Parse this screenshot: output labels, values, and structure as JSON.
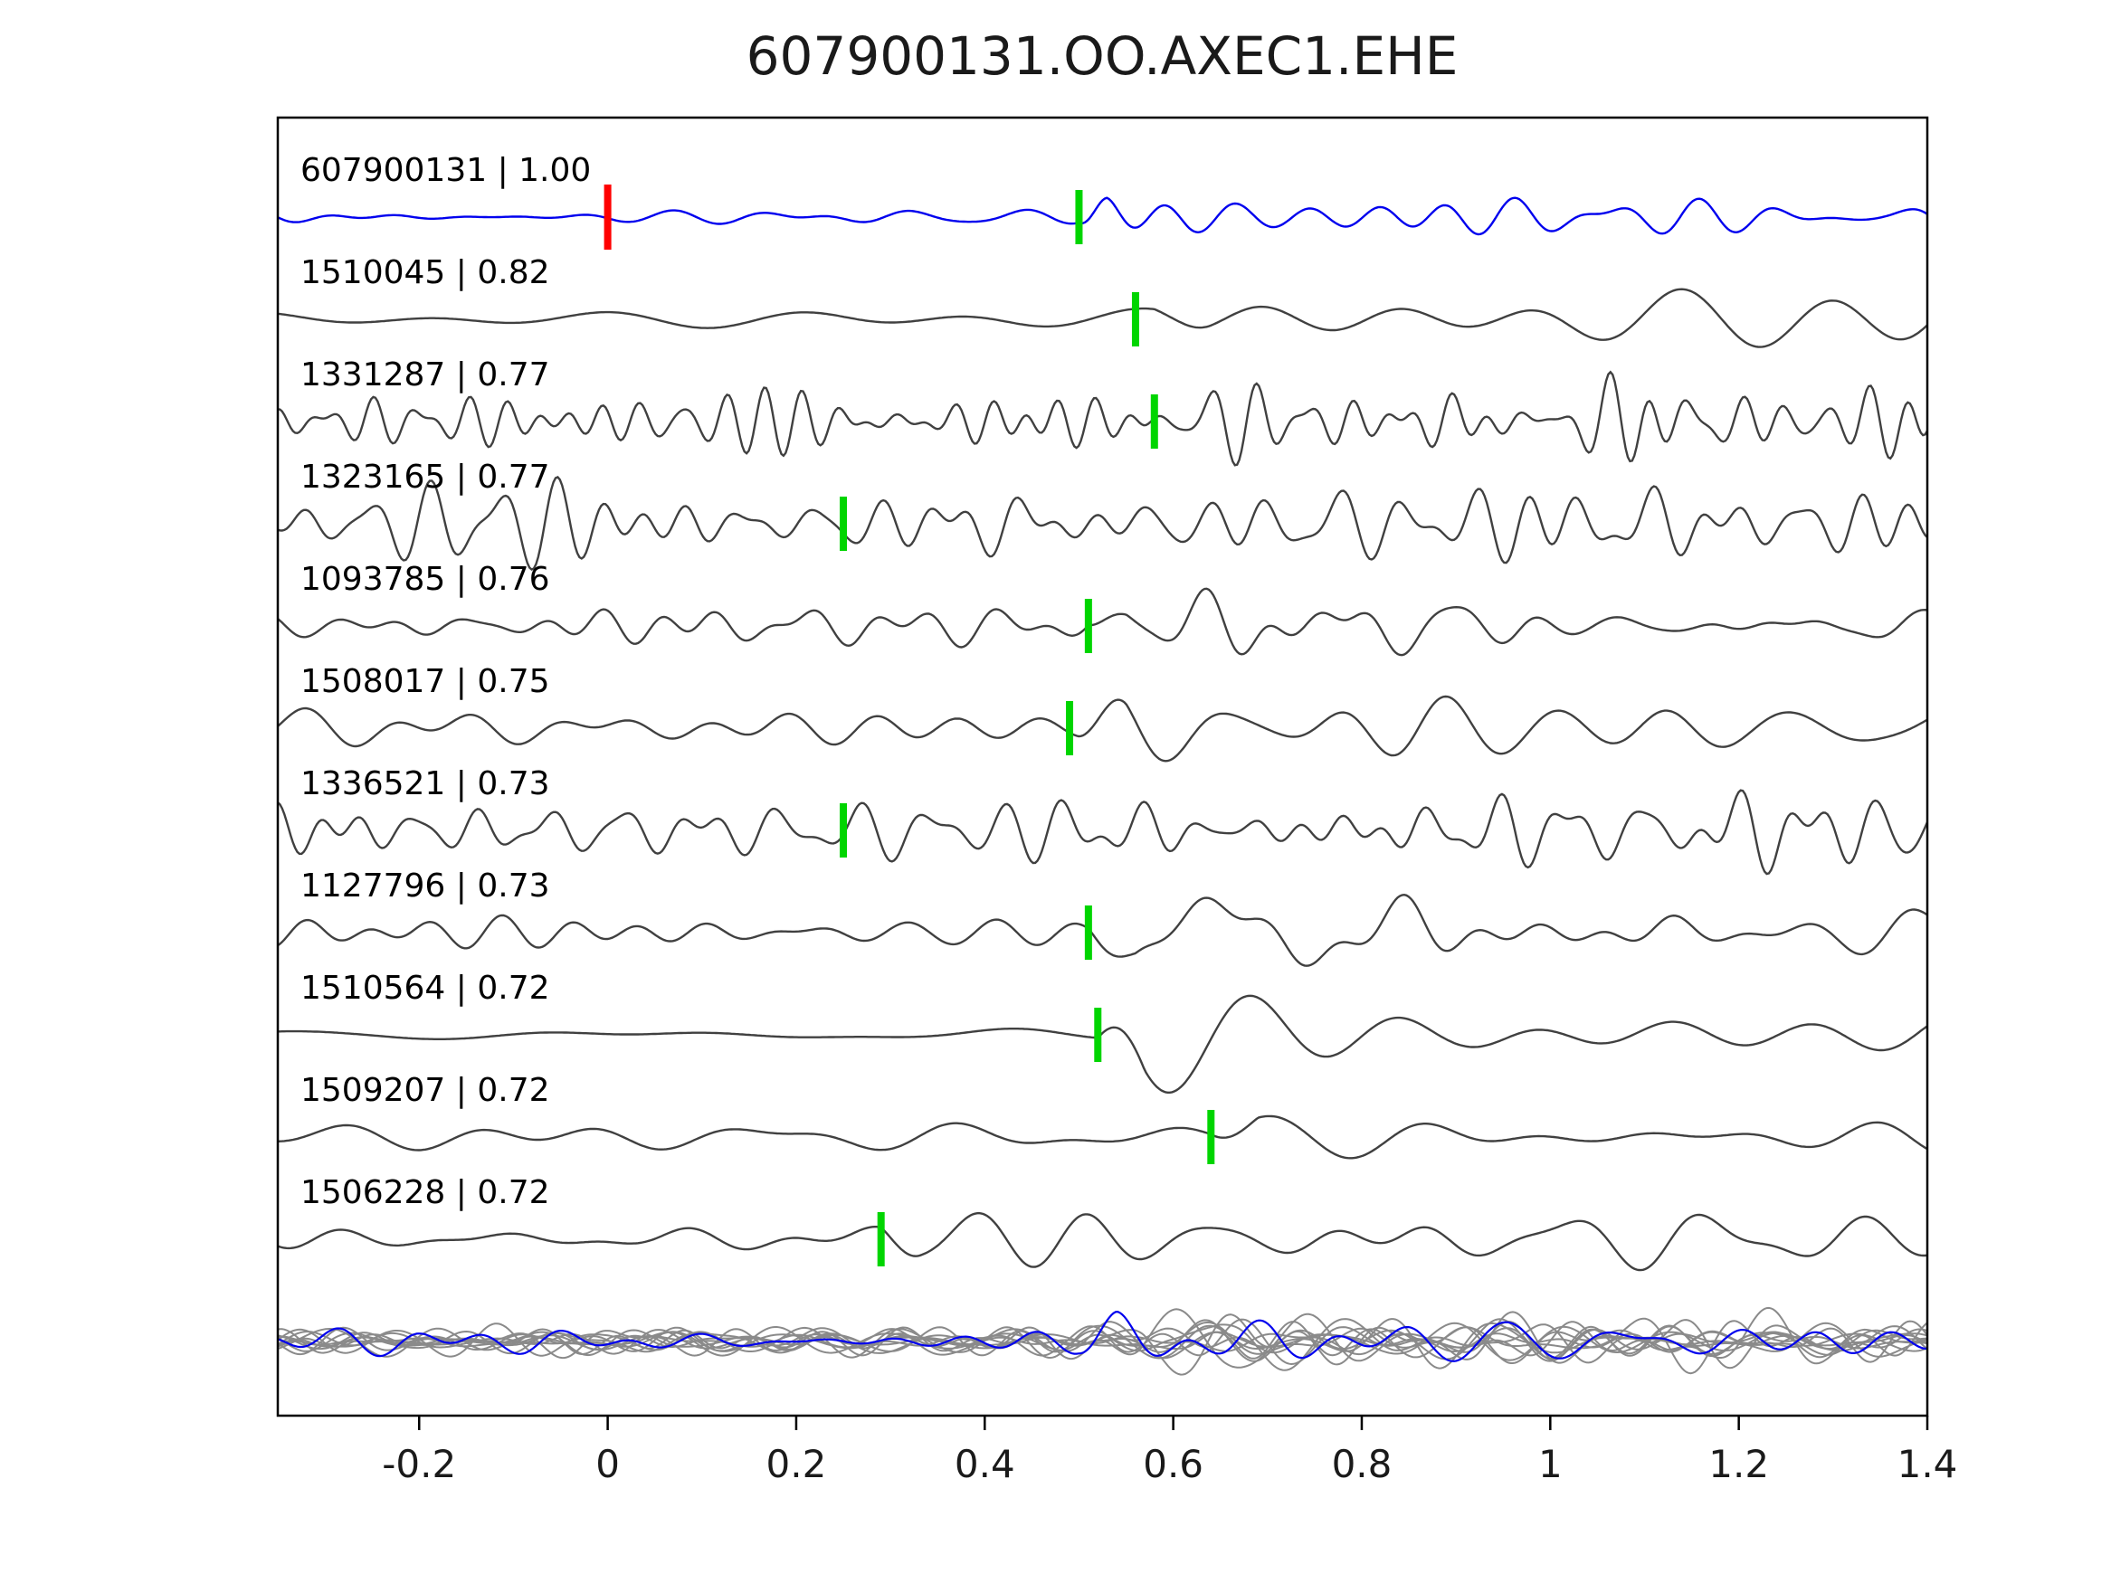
{
  "figure": {
    "title": "607900131.OO.AXEC1.EHE"
  },
  "chart_data": {
    "type": "line",
    "title": "607900131.OO.AXEC1.EHE",
    "description": "Stacked seismic waveform cross-correlation plot: blue template event on top with red pick at t=0, matched detections below each labelled 'id | correlation' with green pick marks, and all traces overlaid at the bottom.",
    "xlim": [
      -0.35,
      1.4
    ],
    "xticks": [
      -0.2,
      0,
      0.2,
      0.4,
      0.6,
      0.8,
      1,
      1.2,
      1.4
    ],
    "xtick_labels": [
      "-0.2",
      "0",
      "0.2",
      "0.4",
      "0.6",
      "0.8",
      "1",
      "1.2",
      "1.4"
    ],
    "grid": false,
    "legend": "none",
    "colors": {
      "template": "#0000ee",
      "trace": "#404040",
      "overlay": "#8a8a8a",
      "pick": "#00d500",
      "template_pick": "#ff0000",
      "axis": "#000000"
    },
    "traces": [
      {
        "id": "607900131",
        "correlation": "1.00",
        "label": "607900131 | 1.00",
        "is_template": true,
        "color": "#0000ee",
        "picks": [
          {
            "time": 0.0,
            "color": "#ff0000"
          },
          {
            "time": 0.5,
            "color": "#00d500"
          }
        ],
        "render": {
          "seed": 101,
          "base_amp": 7,
          "base_f": [
            7,
            18
          ],
          "burst_t": 0.5,
          "burst_amp": 40,
          "burst_f": [
            9,
            16
          ],
          "rise": 0.03,
          "decay": 0.3,
          "tail": 0.4
        }
      },
      {
        "id": "1510045",
        "correlation": "0.82",
        "label": "1510045 | 0.82",
        "is_template": false,
        "color": "#404040",
        "picks": [
          {
            "time": 0.56,
            "color": "#00d500"
          }
        ],
        "render": {
          "seed": 202,
          "base_amp": 10,
          "base_f": [
            3,
            7
          ],
          "burst_t": 0.58,
          "burst_amp": 55,
          "burst_f": [
            4,
            7
          ],
          "rise": 0.06,
          "decay": 0.45,
          "tail": 0.45
        }
      },
      {
        "id": "1331287",
        "correlation": "0.77",
        "label": "1331287 | 0.77",
        "is_template": false,
        "color": "#404040",
        "picks": [
          {
            "time": 0.58,
            "color": "#00d500"
          }
        ],
        "render": {
          "seed": 303,
          "base_amp": 26,
          "base_f": [
            14,
            30
          ],
          "burst_t": 0.58,
          "burst_amp": 26,
          "burst_f": [
            10,
            20
          ],
          "rise": 0.04,
          "decay": 0.35,
          "tail": 0.5
        }
      },
      {
        "id": "1323165",
        "correlation": "0.77",
        "label": "1323165 | 0.77",
        "is_template": false,
        "color": "#404040",
        "picks": [
          {
            "time": 0.25,
            "color": "#00d500"
          }
        ],
        "render": {
          "seed": 404,
          "base_amp": 30,
          "base_f": [
            10,
            26
          ],
          "burst_t": 0.26,
          "burst_amp": 26,
          "burst_f": [
            8,
            18
          ],
          "rise": 0.04,
          "decay": 0.5,
          "tail": 0.5
        }
      },
      {
        "id": "1093785",
        "correlation": "0.76",
        "label": "1093785 | 0.76",
        "is_template": false,
        "color": "#404040",
        "picks": [
          {
            "time": 0.51,
            "color": "#00d500"
          }
        ],
        "render": {
          "seed": 505,
          "base_amp": 14,
          "base_f": [
            8,
            20
          ],
          "burst_t": 0.51,
          "burst_amp": 40,
          "burst_f": [
            6,
            12
          ],
          "rise": 0.04,
          "decay": 0.3,
          "tail": 0.4
        }
      },
      {
        "id": "1508017",
        "correlation": "0.75",
        "label": "1508017 | 0.75",
        "is_template": false,
        "color": "#404040",
        "picks": [
          {
            "time": 0.49,
            "color": "#00d500"
          }
        ],
        "render": {
          "seed": 606,
          "base_amp": 16,
          "base_f": [
            5,
            12
          ],
          "burst_t": 0.5,
          "burst_amp": 45,
          "burst_f": [
            5,
            9
          ],
          "rise": 0.05,
          "decay": 0.35,
          "tail": 0.4
        }
      },
      {
        "id": "1336521",
        "correlation": "0.73",
        "label": "1336521 | 0.73",
        "is_template": false,
        "color": "#404040",
        "picks": [
          {
            "time": 0.25,
            "color": "#00d500"
          }
        ],
        "render": {
          "seed": 707,
          "base_amp": 24,
          "base_f": [
            10,
            24
          ],
          "burst_t": 0.26,
          "burst_amp": 30,
          "burst_f": [
            8,
            16
          ],
          "rise": 0.04,
          "decay": 0.6,
          "tail": 0.5
        }
      },
      {
        "id": "1127796",
        "correlation": "0.73",
        "label": "1127796 | 0.73",
        "is_template": false,
        "color": "#404040",
        "picks": [
          {
            "time": 0.51,
            "color": "#00d500"
          }
        ],
        "render": {
          "seed": 808,
          "base_amp": 14,
          "base_f": [
            7,
            16
          ],
          "burst_t": 0.51,
          "burst_amp": 45,
          "burst_f": [
            4,
            9
          ],
          "rise": 0.05,
          "decay": 0.5,
          "tail": 0.45
        }
      },
      {
        "id": "1510564",
        "correlation": "0.72",
        "label": "1510564 | 0.72",
        "is_template": false,
        "color": "#404040",
        "picks": [
          {
            "time": 0.52,
            "color": "#00d500"
          }
        ],
        "render": {
          "seed": 909,
          "base_amp": 6,
          "base_f": [
            2,
            6
          ],
          "burst_t": 0.52,
          "burst_amp": 52,
          "burst_f": [
            4,
            7
          ],
          "rise": 0.05,
          "decay": 0.4,
          "tail": 0.4
        }
      },
      {
        "id": "1509207",
        "correlation": "0.72",
        "label": "1509207 | 0.72",
        "is_template": false,
        "color": "#404040",
        "picks": [
          {
            "time": 0.64,
            "color": "#00d500"
          }
        ],
        "render": {
          "seed": 1010,
          "base_amp": 12,
          "base_f": [
            4,
            9
          ],
          "burst_t": 0.64,
          "burst_amp": 50,
          "burst_f": [
            4,
            7
          ],
          "rise": 0.05,
          "decay": 0.4,
          "tail": 0.4
        }
      },
      {
        "id": "1506228",
        "correlation": "0.72",
        "label": "1506228 | 0.72",
        "is_template": false,
        "color": "#404040",
        "picks": [
          {
            "time": 0.29,
            "color": "#00d500"
          }
        ],
        "render": {
          "seed": 1111,
          "base_amp": 13,
          "base_f": [
            5,
            11
          ],
          "burst_t": 0.29,
          "burst_amp": 32,
          "burst_f": [
            6,
            11
          ],
          "rise": 0.04,
          "decay": 0.8,
          "tail": 0.6
        }
      }
    ],
    "overlay_row": {
      "includes_all_traces": true,
      "trace_color": "#8a8a8a",
      "template_color": "#0000ee"
    }
  }
}
